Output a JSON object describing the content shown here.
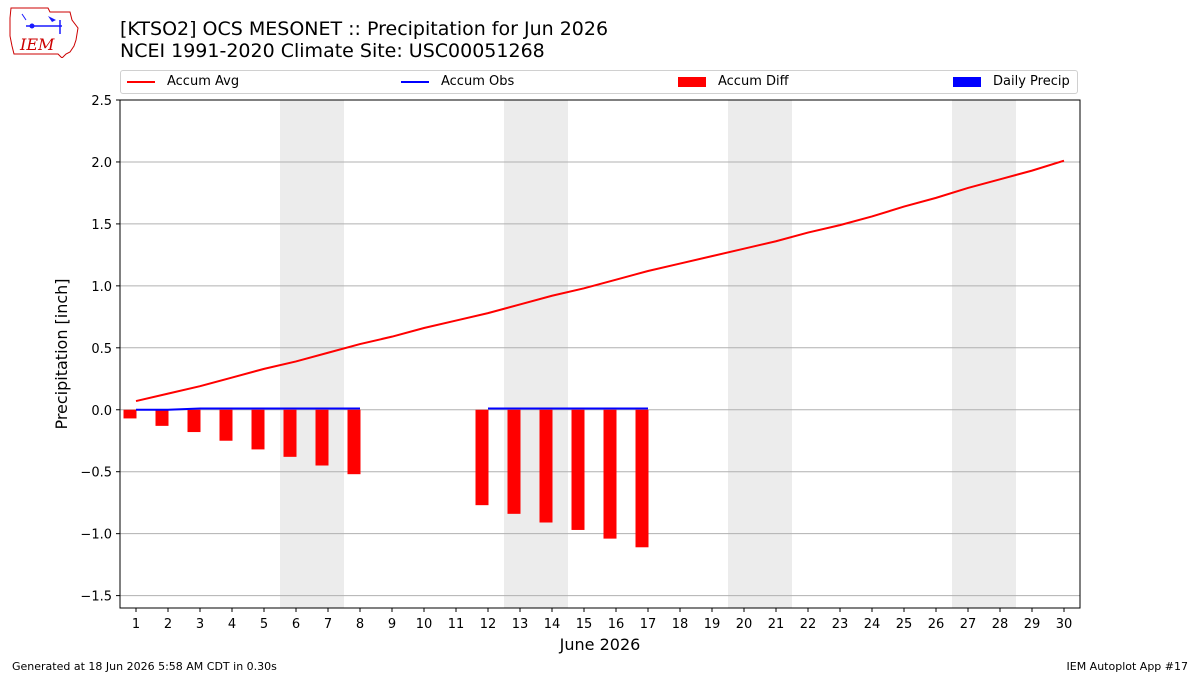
{
  "header": {
    "title_line1": "[KTSO2] OCS MESONET :: Precipitation for Jun 2026",
    "title_line2": "NCEI 1991-2020 Climate Site: USC00051268"
  },
  "logo": {
    "text": "IEM",
    "color": "#cc0000"
  },
  "footer": {
    "generated": "Generated at 18 Jun 2026 5:58 AM CDT in 0.30s",
    "app": "IEM Autoplot App #17"
  },
  "legend": [
    {
      "label": "Accum Avg",
      "kind": "line",
      "color": "#ff0000"
    },
    {
      "label": "Accum Obs",
      "kind": "line",
      "color": "#0000ff"
    },
    {
      "label": "Accum Diff",
      "kind": "box",
      "color": "#ff0000"
    },
    {
      "label": "Daily Precip",
      "kind": "box",
      "color": "#0000ff"
    }
  ],
  "chart_data": {
    "type": "bar",
    "xlabel": "June 2026",
    "ylabel": "Precipitation [inch]",
    "xlim": [
      0.5,
      30.5
    ],
    "ylim": [
      -1.6,
      2.5
    ],
    "yticks": [
      -1.5,
      -1.0,
      -0.5,
      0.0,
      0.5,
      1.0,
      1.5,
      2.0,
      2.5
    ],
    "ytick_labels": [
      "−1.5",
      "−1.0",
      "−0.5",
      "0.0",
      "0.5",
      "1.0",
      "1.5",
      "2.0",
      "2.5"
    ],
    "xticks": [
      1,
      2,
      3,
      4,
      5,
      6,
      7,
      8,
      9,
      10,
      11,
      12,
      13,
      14,
      15,
      16,
      17,
      18,
      19,
      20,
      21,
      22,
      23,
      24,
      25,
      26,
      27,
      28,
      29,
      30
    ],
    "grid": "horizontal",
    "weekend_shading": [
      [
        5.5,
        7.5
      ],
      [
        12.5,
        14.5
      ],
      [
        19.5,
        21.5
      ],
      [
        26.5,
        28.5
      ]
    ],
    "shade_color": "#ececec",
    "series": [
      {
        "name": "Accum Avg",
        "kind": "line",
        "color": "#ff0000",
        "x": [
          1,
          2,
          3,
          4,
          5,
          6,
          7,
          8,
          9,
          10,
          11,
          12,
          13,
          14,
          15,
          16,
          17,
          18,
          19,
          20,
          21,
          22,
          23,
          24,
          25,
          26,
          27,
          28,
          29,
          30
        ],
        "y": [
          0.07,
          0.13,
          0.19,
          0.26,
          0.33,
          0.39,
          0.46,
          0.53,
          0.59,
          0.66,
          0.72,
          0.78,
          0.85,
          0.92,
          0.98,
          1.05,
          1.12,
          1.18,
          1.24,
          1.3,
          1.36,
          1.43,
          1.49,
          1.56,
          1.64,
          1.71,
          1.79,
          1.86,
          1.93,
          2.01
        ]
      },
      {
        "name": "Accum Obs",
        "kind": "line",
        "color": "#0000ff",
        "segments": [
          {
            "x": [
              1,
              2,
              3,
              4,
              5,
              6,
              7,
              8
            ],
            "y": [
              0,
              0,
              0.01,
              0.01,
              0.01,
              0.01,
              0.01,
              0.01
            ]
          },
          {
            "x": [
              12,
              13,
              14,
              15,
              16,
              17
            ],
            "y": [
              0.01,
              0.01,
              0.01,
              0.01,
              0.01,
              0.01
            ]
          }
        ]
      },
      {
        "name": "Accum Diff",
        "kind": "bar",
        "color": "#ff0000",
        "x": [
          1,
          2,
          3,
          4,
          5,
          6,
          7,
          8,
          12,
          13,
          14,
          15,
          16,
          17
        ],
        "y": [
          -0.07,
          -0.13,
          -0.18,
          -0.25,
          -0.32,
          -0.38,
          -0.45,
          -0.52,
          -0.77,
          -0.84,
          -0.91,
          -0.97,
          -1.04,
          -1.11
        ]
      },
      {
        "name": "Daily Precip",
        "kind": "bar",
        "color": "#0000ff",
        "x": [],
        "y": []
      }
    ]
  }
}
